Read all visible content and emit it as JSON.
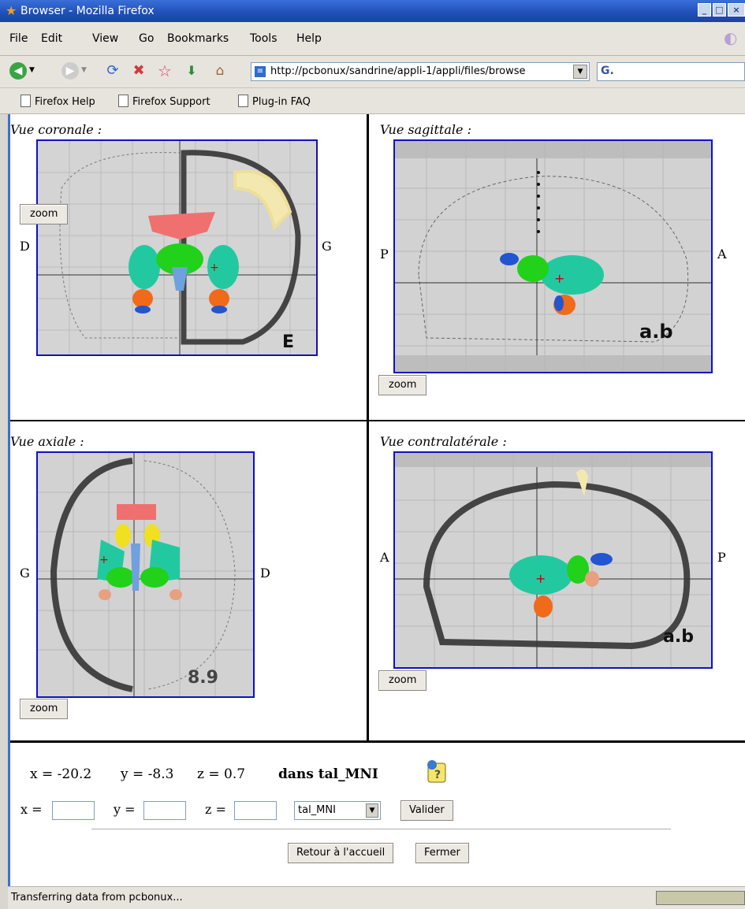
{
  "window": {
    "title": "Browser - Mozilla Firefox"
  },
  "menu": [
    {
      "key": "F",
      "rest": "ile"
    },
    {
      "key": "E",
      "rest": "dit",
      "plain": true
    },
    {
      "key": "V",
      "rest": "iew"
    },
    {
      "key": "G",
      "rest": "o"
    },
    {
      "key": "B",
      "rest": "ookmarks"
    },
    {
      "key": "T",
      "rest": "ools"
    },
    {
      "key": "H",
      "rest": "elp"
    }
  ],
  "menu_labels": {
    "file": "File",
    "edit": "Edit",
    "view": "View",
    "go": "Go",
    "bookmarks": "Bookmarks",
    "tools": "Tools",
    "help": "Help"
  },
  "url": "http://pcbonux/sandrine/appli-1/appli/files/browse",
  "search_logo": "G.",
  "bookmarks": [
    "Firefox Help",
    "Firefox Support",
    "Plug-in FAQ"
  ],
  "panels": {
    "coronal": {
      "title": "Vue coronale :",
      "left": "D",
      "right": "G",
      "corner_label": "E",
      "zoom": "zoom"
    },
    "sagittal": {
      "title": "Vue sagittale :",
      "left": "P",
      "right": "A",
      "corner_label": "a.b",
      "zoom": "zoom"
    },
    "axial": {
      "title": "Vue axiale :",
      "left": "G",
      "right": "D",
      "corner_label": "8.9",
      "zoom": "zoom"
    },
    "contralateral": {
      "title": "Vue contralatérale :",
      "left": "A",
      "right": "P",
      "corner_label": "a.b",
      "zoom": "zoom"
    }
  },
  "coordinates": {
    "x": "x = -20.2",
    "y": "y = -8.3",
    "z": "z = 0.7",
    "space": "dans tal_MNI"
  },
  "form": {
    "x_label": "x =",
    "y_label": "y =",
    "z_label": "z =",
    "x_value": "",
    "y_value": "",
    "z_value": "",
    "select_value": "tal_MNI",
    "submit": "Valider"
  },
  "buttons": {
    "home": "Retour à l'accueil",
    "close": "Fermer"
  },
  "status": "Transferring data from pcbonux..."
}
